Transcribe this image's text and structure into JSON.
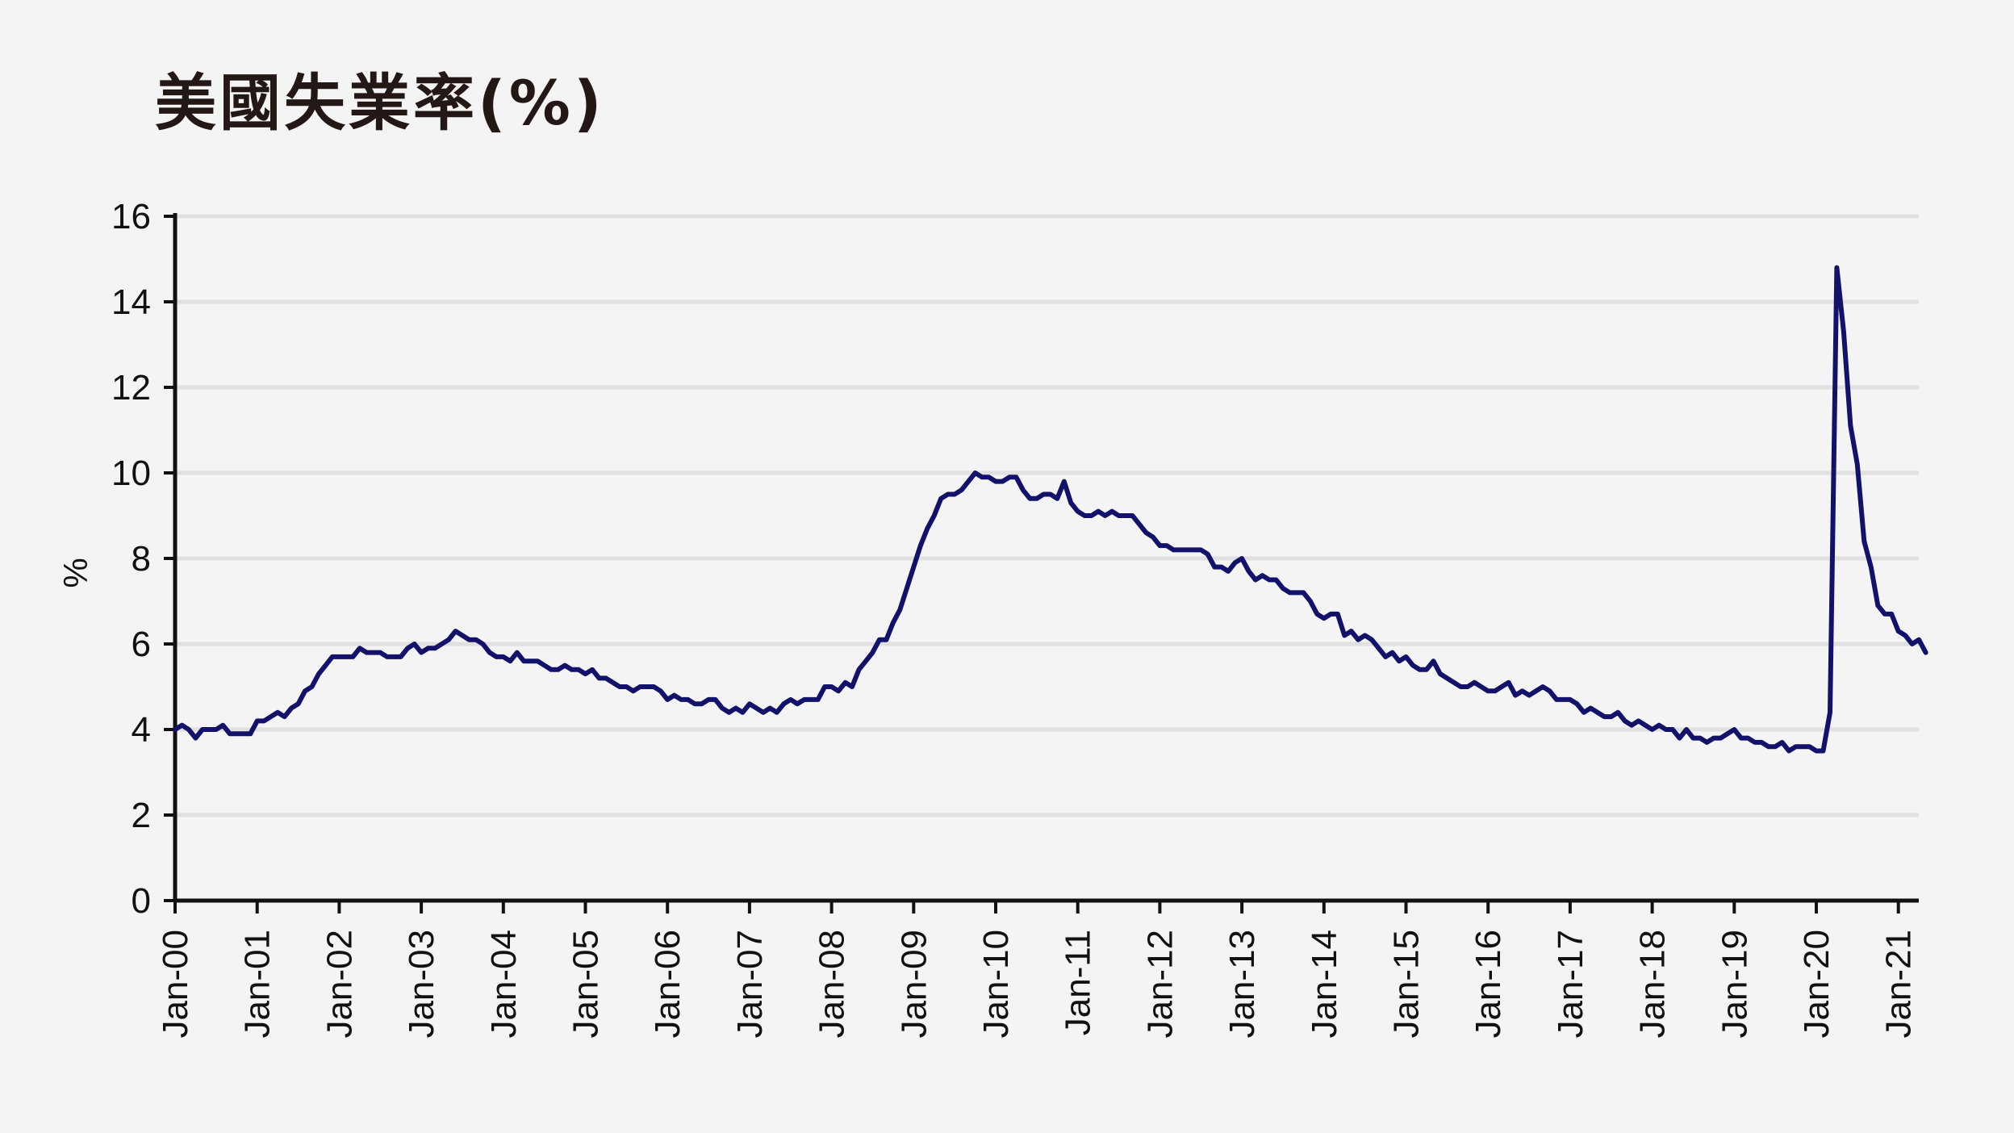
{
  "chart_data": {
    "type": "line",
    "title": "美國失業率(%)",
    "ylabel": "%",
    "xlabel": "",
    "ylim": [
      0,
      16
    ],
    "yticks": [
      "0",
      "2",
      "4",
      "6",
      "8",
      "10",
      "12",
      "14",
      "16"
    ],
    "xticks": [
      "Jan-00",
      "Jan-01",
      "Jan-02",
      "Jan-03",
      "Jan-04",
      "Jan-05",
      "Jan-06",
      "Jan-07",
      "Jan-08",
      "Jan-09",
      "Jan-10",
      "Jan-11",
      "Jan-12",
      "Jan-13",
      "Jan-14",
      "Jan-15",
      "Jan-16",
      "Jan-17",
      "Jan-18",
      "Jan-19",
      "Jan-20",
      "Jan-21"
    ],
    "grid": true,
    "line_color": "#12126b",
    "x_start": "2000-01",
    "x_end": "2021-05",
    "series": [
      {
        "values": [
          4.0,
          4.1,
          4.0,
          3.8,
          4.0,
          4.0,
          4.0,
          4.1,
          3.9,
          3.9,
          3.9,
          3.9,
          4.2,
          4.2,
          4.3,
          4.4,
          4.3,
          4.5,
          4.6,
          4.9,
          5.0,
          5.3,
          5.5,
          5.7,
          5.7,
          5.7,
          5.7,
          5.9,
          5.8,
          5.8,
          5.8,
          5.7,
          5.7,
          5.7,
          5.9,
          6.0,
          5.8,
          5.9,
          5.9,
          6.0,
          6.1,
          6.3,
          6.2,
          6.1,
          6.1,
          6.0,
          5.8,
          5.7,
          5.7,
          5.6,
          5.8,
          5.6,
          5.6,
          5.6,
          5.5,
          5.4,
          5.4,
          5.5,
          5.4,
          5.4,
          5.3,
          5.4,
          5.2,
          5.2,
          5.1,
          5.0,
          5.0,
          4.9,
          5.0,
          5.0,
          5.0,
          4.9,
          4.7,
          4.8,
          4.7,
          4.7,
          4.6,
          4.6,
          4.7,
          4.7,
          4.5,
          4.4,
          4.5,
          4.4,
          4.6,
          4.5,
          4.4,
          4.5,
          4.4,
          4.6,
          4.7,
          4.6,
          4.7,
          4.7,
          4.7,
          5.0,
          5.0,
          4.9,
          5.1,
          5.0,
          5.4,
          5.6,
          5.8,
          6.1,
          6.1,
          6.5,
          6.8,
          7.3,
          7.8,
          8.3,
          8.7,
          9.0,
          9.4,
          9.5,
          9.5,
          9.6,
          9.8,
          10.0,
          9.9,
          9.9,
          9.8,
          9.8,
          9.9,
          9.9,
          9.6,
          9.4,
          9.4,
          9.5,
          9.5,
          9.4,
          9.8,
          9.3,
          9.1,
          9.0,
          9.0,
          9.1,
          9.0,
          9.1,
          9.0,
          9.0,
          9.0,
          8.8,
          8.6,
          8.5,
          8.3,
          8.3,
          8.2,
          8.2,
          8.2,
          8.2,
          8.2,
          8.1,
          7.8,
          7.8,
          7.7,
          7.9,
          8.0,
          7.7,
          7.5,
          7.6,
          7.5,
          7.5,
          7.3,
          7.2,
          7.2,
          7.2,
          7.0,
          6.7,
          6.6,
          6.7,
          6.7,
          6.2,
          6.3,
          6.1,
          6.2,
          6.1,
          5.9,
          5.7,
          5.8,
          5.6,
          5.7,
          5.5,
          5.4,
          5.4,
          5.6,
          5.3,
          5.2,
          5.1,
          5.0,
          5.0,
          5.1,
          5.0,
          4.9,
          4.9,
          5.0,
          5.1,
          4.8,
          4.9,
          4.8,
          4.9,
          5.0,
          4.9,
          4.7,
          4.7,
          4.7,
          4.6,
          4.4,
          4.5,
          4.4,
          4.3,
          4.3,
          4.4,
          4.2,
          4.1,
          4.2,
          4.1,
          4.0,
          4.1,
          4.0,
          4.0,
          3.8,
          4.0,
          3.8,
          3.8,
          3.7,
          3.8,
          3.8,
          3.9,
          4.0,
          3.8,
          3.8,
          3.7,
          3.7,
          3.6,
          3.6,
          3.7,
          3.5,
          3.6,
          3.6,
          3.6,
          3.5,
          3.5,
          4.4,
          14.8,
          13.3,
          11.1,
          10.2,
          8.4,
          7.8,
          6.9,
          6.7,
          6.7,
          6.3,
          6.2,
          6.0,
          6.1,
          5.8
        ]
      }
    ]
  }
}
